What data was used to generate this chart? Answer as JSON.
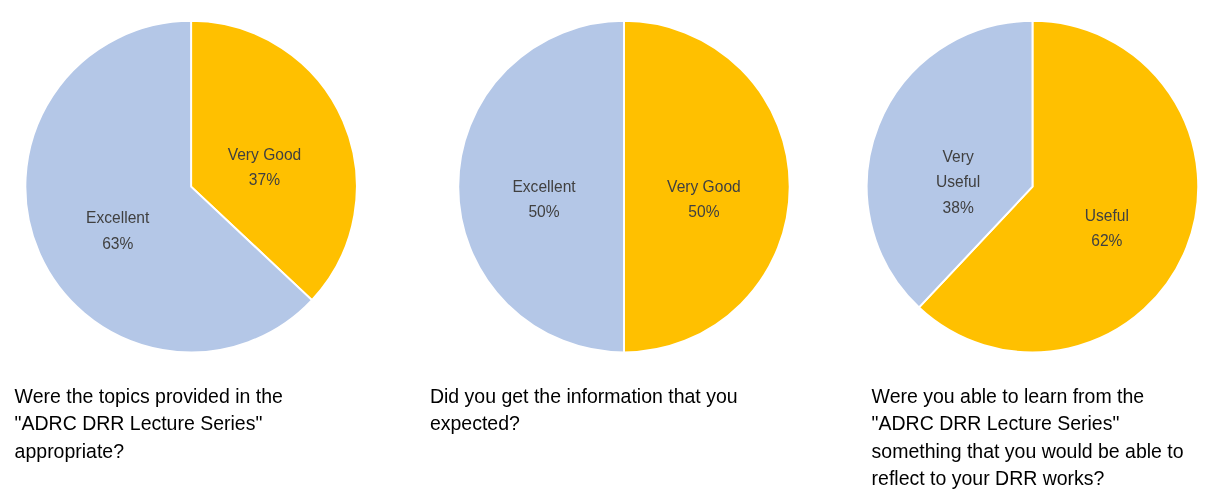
{
  "chart_data": [
    {
      "type": "pie",
      "title": "Were the topics provided in the\n\"ADRC DRR Lecture Series\"\nappropriate?",
      "categories": [
        "Very Good",
        "Excellent"
      ],
      "values": [
        37,
        63
      ],
      "value_labels": [
        "37%",
        "63%"
      ],
      "colors": [
        "#ffc000",
        "#b4c7e7"
      ]
    },
    {
      "type": "pie",
      "title": "Did you get the information that you\nexpected?",
      "categories": [
        "Very Good",
        "Excellent"
      ],
      "values": [
        50,
        50
      ],
      "value_labels": [
        "50%",
        "50%"
      ],
      "colors": [
        "#ffc000",
        "#b4c7e7"
      ]
    },
    {
      "type": "pie",
      "title": "Were you able to learn from the\n\"ADRC DRR Lecture Series\"\nsomething that you would be able to\nreflect to your DRR works?",
      "categories": [
        "Useful",
        "Very\nUseful"
      ],
      "values": [
        62,
        38
      ],
      "value_labels": [
        "62%",
        "38%"
      ],
      "colors": [
        "#ffc000",
        "#b4c7e7"
      ]
    }
  ]
}
